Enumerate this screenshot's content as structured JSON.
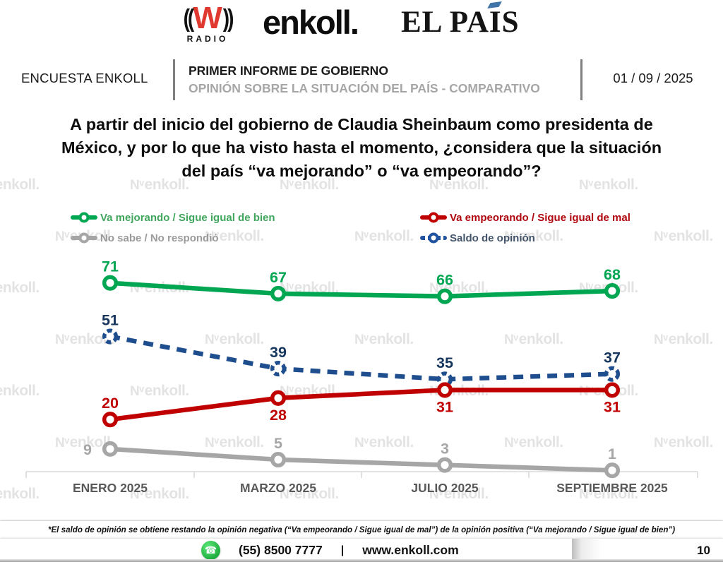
{
  "logos": {
    "wradio": {
      "waves_left": "((",
      "w": "W",
      "waves_right": "))",
      "radio": "RADIO"
    },
    "enkoll": "enkoll.",
    "elpais": {
      "pre": "EL PA",
      "i": "I",
      "post": "S"
    }
  },
  "header": {
    "left_label": "ENCUESTA ENKOLL",
    "title": "PRIMER INFORME DE GOBIERNO",
    "subtitle": "OPINIÓN SOBRE LA SITUACIÓN DEL PAÍS - COMPARATIVO",
    "date": "01 / 09 / 2025"
  },
  "question": {
    "line1": "A partir del inicio del gobierno de Claudia Sheinbaum como presidenta de",
    "line2": "México, y por lo que ha visto hasta el momento, ¿considera que la situación",
    "line3": "del país “va mejorando” o “va empeorando”?"
  },
  "legend": {
    "items": [
      {
        "label": "Va mejorando / Sigue igual de bien",
        "color": "#00A651",
        "text_color": "#3fa65c",
        "dash": false
      },
      {
        "label": "No sabe / No respondió",
        "color": "#A6A6A6",
        "text_color": "#9b9b9b",
        "dash": false
      },
      {
        "label": "Va empeorando / Sigue igual de mal",
        "color": "#C00000",
        "text_color": "#b0070f",
        "dash": false
      },
      {
        "label": "Saldo de opinión",
        "color": "#2153A1",
        "text_color": "#44546a",
        "dash": true
      }
    ]
  },
  "chart_data": {
    "type": "line",
    "categories": [
      "ENERO 2025",
      "MARZO 2025",
      "JULIO 2025",
      "SEPTIEMBRE 2025"
    ],
    "series": [
      {
        "name": "No sabe / No respondió",
        "color": "#A6A6A6",
        "label_color": "#A6A6A6",
        "dash": false,
        "values": [
          9,
          5,
          3,
          1
        ],
        "label_positions": [
          "left",
          "above",
          "above",
          "above"
        ]
      },
      {
        "name": "Saldo de opinión",
        "color": "#1F4E8F",
        "label_color": "#17365D",
        "dash": true,
        "values": [
          51,
          39,
          35,
          37
        ],
        "label_positions": [
          "above",
          "above",
          "above",
          "above"
        ]
      },
      {
        "name": "Va empeorando / Sigue igual de mal",
        "color": "#C00000",
        "label_color": "#C00000",
        "dash": false,
        "values": [
          20,
          28,
          31,
          31
        ],
        "label_positions": [
          "above",
          "below",
          "below",
          "below"
        ]
      },
      {
        "name": "Va mejorando / Sigue igual de bien",
        "color": "#00A651",
        "label_color": "#00A651",
        "dash": false,
        "values": [
          71,
          67,
          66,
          68
        ],
        "label_positions": [
          "above",
          "above",
          "above",
          "above"
        ]
      }
    ],
    "title": "",
    "xlabel": "",
    "ylabel": "",
    "ylim": [
      0,
      80
    ],
    "grid": false,
    "legend_position": "top",
    "axis_color": "#D9D9D9",
    "category_label_color": "#595959"
  },
  "footnote": {
    "text": "*El saldo de opinión se obtiene restando la opinión negativa (“Va empeorando / Sigue igual de mal”) de la opinión positiva (“Va mejorando / Sigue igual de bien”)"
  },
  "footer": {
    "phone": "(55) 8500 7777",
    "separator": "|",
    "website": "www.enkoll.com",
    "page": "10"
  },
  "watermark": {
    "mark": "Nᵛ",
    "text": "enkoll."
  }
}
